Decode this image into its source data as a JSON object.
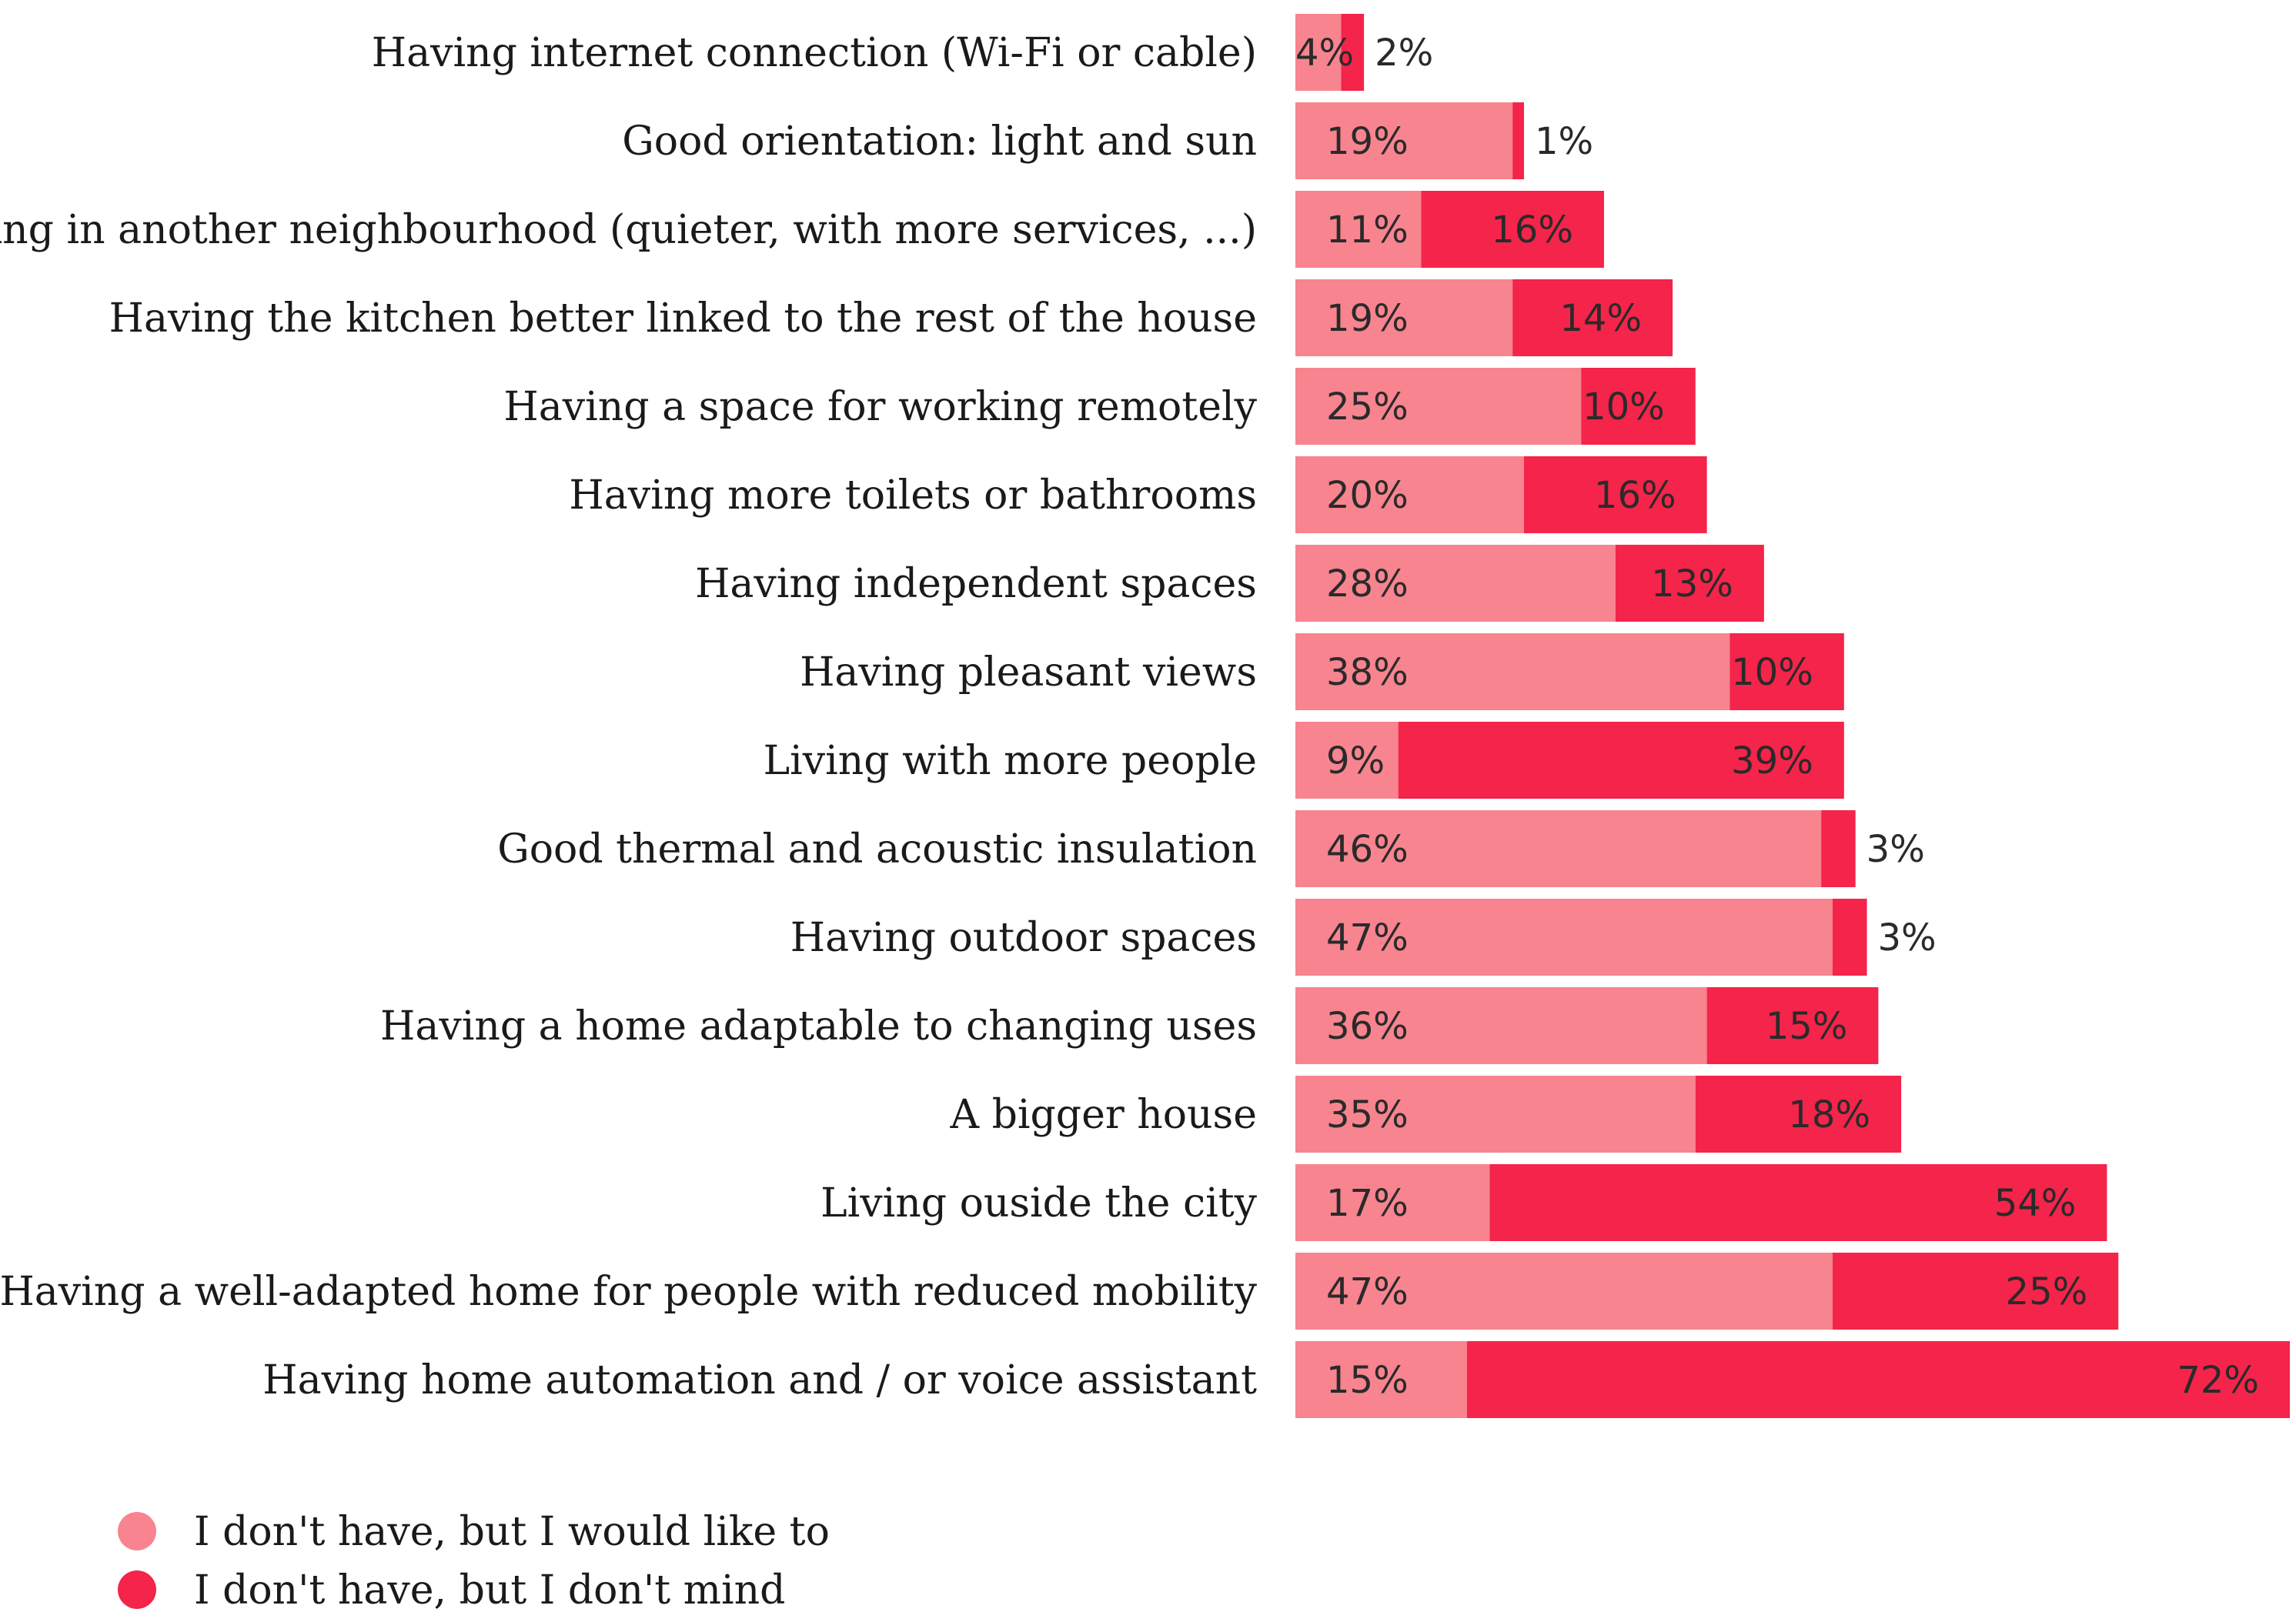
{
  "chart_data": {
    "type": "bar",
    "orientation": "horizontal",
    "stacked": true,
    "categories": [
      "Having internet connection (Wi-Fi or cable)",
      "Good orientation: light and sun",
      "Living in another neighbourhood (quieter, with more services, ...)",
      "Having the kitchen better linked to the rest of the house",
      "Having a space for working remotely",
      "Having more toilets or bathrooms",
      "Having independent spaces",
      "Having pleasant views",
      "Living with more people",
      "Good thermal and acoustic insulation",
      "Having outdoor spaces",
      "Having a home adaptable to changing uses",
      "A bigger house",
      "Living ouside the city",
      "Having a well-adapted home for people with reduced mobility",
      "Having home automation and / or voice assistant"
    ],
    "series": [
      {
        "name": "I don't have, but I would like to",
        "color": "#f7848f",
        "values": [
          4,
          19,
          11,
          19,
          25,
          20,
          28,
          38,
          9,
          46,
          47,
          36,
          35,
          17,
          47,
          15
        ],
        "labels": [
          "4%",
          "19%",
          "11%",
          "19%",
          "25%",
          "20%",
          "28%",
          "38%",
          "9%",
          "46%",
          "47%",
          "36%",
          "35%",
          "17%",
          "47%",
          "15%"
        ]
      },
      {
        "name": "I don't have, but I don't mind",
        "color": "#f4244a",
        "values": [
          2,
          1,
          16,
          14,
          10,
          16,
          13,
          10,
          39,
          3,
          3,
          15,
          18,
          54,
          25,
          72
        ],
        "labels": [
          "2%",
          "1%",
          "16%",
          "14%",
          "10%",
          "16%",
          "13%",
          "10%",
          "39%",
          "3%",
          "3%",
          "15%",
          "18%",
          "54%",
          "25%",
          "72%"
        ]
      }
    ],
    "xlim": [
      0,
      87
    ],
    "grid": false,
    "axes_visible": false,
    "legend_position": "bottom-left"
  }
}
